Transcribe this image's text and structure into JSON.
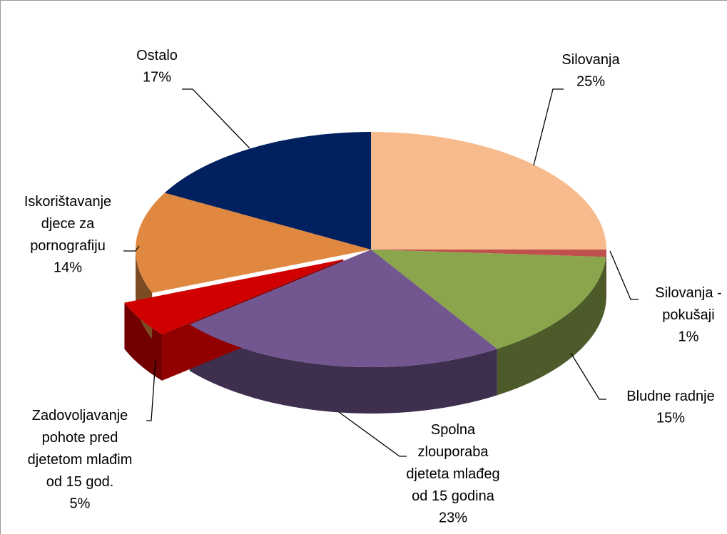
{
  "chart_data": {
    "type": "pie3d",
    "categories": [
      "Silovanja",
      "Silovanja - pokušaji",
      "Bludne radnje",
      "Spolna zlouporaba djeteta mlađeg od 15 godina",
      "Zadovoljavanje pohote pred djetetom mlađim od 15 god.",
      "Iskorištavanje djece za pornografiju",
      "Ostalo"
    ],
    "values": [
      25,
      1,
      15,
      23,
      5,
      14,
      17
    ],
    "value_labels": [
      "25%",
      "1%",
      "15%",
      "23%",
      "5%",
      "14%",
      "17%"
    ],
    "colors": [
      "#f7ba8c",
      "#c0504d",
      "#8aa54b",
      "#715690",
      "#d00000",
      "#e0883f",
      "#00205f"
    ],
    "exploded": [
      4
    ]
  }
}
